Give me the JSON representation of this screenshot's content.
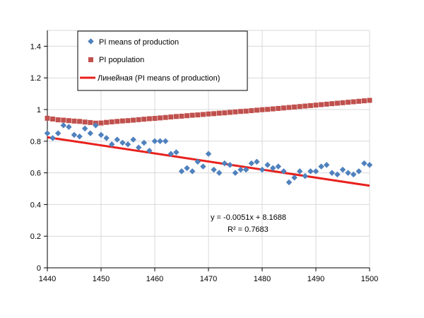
{
  "chart_data": {
    "type": "scatter",
    "xlim": [
      1440,
      1500
    ],
    "ylim": [
      0,
      1.5
    ],
    "x_ticks": [
      "1440",
      "1450",
      "1460",
      "1470",
      "1480",
      "1490",
      "1500"
    ],
    "y_ticks": [
      "0",
      "0.2",
      "0.4",
      "0.6",
      "0.8",
      "1",
      "1.2",
      "1.4"
    ],
    "grid": "major-both",
    "legend_placement": "top-left",
    "series": [
      {
        "name": "PI means of production",
        "marker": "diamond",
        "color": "#4F81BD",
        "x": [
          1440,
          1441,
          1442,
          1443,
          1444,
          1445,
          1446,
          1447,
          1448,
          1449,
          1450,
          1451,
          1452,
          1453,
          1454,
          1455,
          1456,
          1457,
          1458,
          1459,
          1460,
          1461,
          1462,
          1463,
          1464,
          1465,
          1466,
          1467,
          1468,
          1469,
          1470,
          1471,
          1472,
          1473,
          1474,
          1475,
          1476,
          1477,
          1478,
          1479,
          1480,
          1481,
          1482,
          1483,
          1484,
          1485,
          1486,
          1487,
          1488,
          1489,
          1490,
          1491,
          1492,
          1493,
          1494,
          1495,
          1496,
          1497,
          1498,
          1499,
          1500
        ],
        "y": [
          0.85,
          0.82,
          0.85,
          0.9,
          0.89,
          0.84,
          0.83,
          0.88,
          0.85,
          0.9,
          0.84,
          0.82,
          0.78,
          0.81,
          0.79,
          0.78,
          0.81,
          0.76,
          0.79,
          0.74,
          0.8,
          0.8,
          0.8,
          0.72,
          0.73,
          0.61,
          0.63,
          0.61,
          0.67,
          0.64,
          0.72,
          0.62,
          0.6,
          0.66,
          0.65,
          0.6,
          0.62,
          0.62,
          0.66,
          0.67,
          0.62,
          0.65,
          0.63,
          0.64,
          0.61,
          0.54,
          0.57,
          0.61,
          0.58,
          0.61,
          0.61,
          0.64,
          0.65,
          0.6,
          0.59,
          0.62,
          0.6,
          0.59,
          0.61,
          0.66,
          0.65
        ]
      },
      {
        "name": "PI population",
        "marker": "square",
        "color": "#C0504D",
        "x": [
          1440,
          1441,
          1442,
          1443,
          1444,
          1445,
          1446,
          1447,
          1448,
          1449,
          1450,
          1451,
          1452,
          1453,
          1454,
          1455,
          1456,
          1457,
          1458,
          1459,
          1460,
          1461,
          1462,
          1463,
          1464,
          1465,
          1466,
          1467,
          1468,
          1469,
          1470,
          1471,
          1472,
          1473,
          1474,
          1475,
          1476,
          1477,
          1478,
          1479,
          1480,
          1481,
          1482,
          1483,
          1484,
          1485,
          1486,
          1487,
          1488,
          1489,
          1490,
          1491,
          1492,
          1493,
          1494,
          1495,
          1496,
          1497,
          1498,
          1499,
          1500
        ],
        "y": [
          0.945,
          0.94,
          0.935,
          0.933,
          0.93,
          0.927,
          0.925,
          0.921,
          0.918,
          0.914,
          0.915,
          0.919,
          0.922,
          0.925,
          0.928,
          0.93,
          0.933,
          0.936,
          0.939,
          0.942,
          0.944,
          0.947,
          0.95,
          0.953,
          0.956,
          0.958,
          0.961,
          0.964,
          0.966,
          0.969,
          0.972,
          0.974,
          0.977,
          0.979,
          0.982,
          0.985,
          0.988,
          0.99,
          0.993,
          0.996,
          0.999,
          1.001,
          1.004,
          1.007,
          1.01,
          1.013,
          1.016,
          1.019,
          1.022,
          1.025,
          1.028,
          1.031,
          1.034,
          1.037,
          1.04,
          1.043,
          1.046,
          1.049,
          1.052,
          1.055,
          1.058
        ]
      },
      {
        "name": "Линейная (PI means of production)",
        "type": "line",
        "color": "#E8201C",
        "x": [
          1440,
          1500
        ],
        "y": [
          0.8248,
          0.5188
        ]
      }
    ],
    "annotations": [
      "y = -0.0051x + 8.1688",
      "R² = 0.7683"
    ]
  }
}
